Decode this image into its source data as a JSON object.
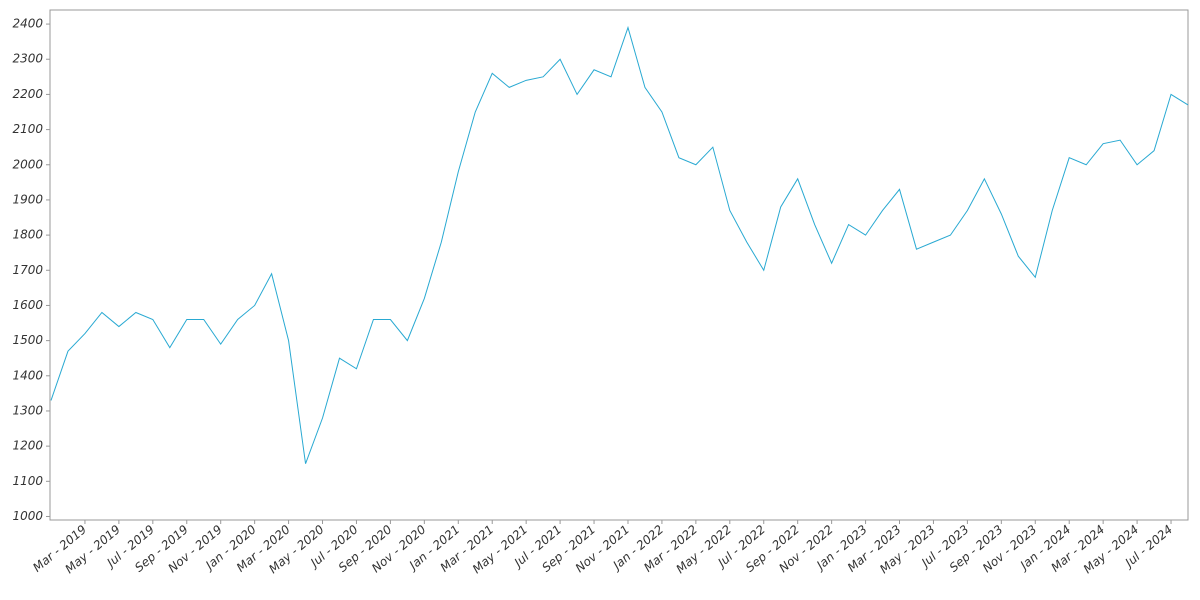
{
  "chart_data": {
    "type": "line",
    "x": [
      "2019-01",
      "2019-02",
      "2019-03",
      "2019-04",
      "2019-05",
      "2019-06",
      "2019-07",
      "2019-08",
      "2019-09",
      "2019-10",
      "2019-11",
      "2019-12",
      "2020-01",
      "2020-02",
      "2020-03",
      "2020-04",
      "2020-05",
      "2020-06",
      "2020-07",
      "2020-08",
      "2020-09",
      "2020-10",
      "2020-11",
      "2020-12",
      "2021-01",
      "2021-02",
      "2021-03",
      "2021-04",
      "2021-05",
      "2021-06",
      "2021-07",
      "2021-08",
      "2021-09",
      "2021-10",
      "2021-11",
      "2021-12",
      "2022-01",
      "2022-02",
      "2022-03",
      "2022-04",
      "2022-05",
      "2022-06",
      "2022-07",
      "2022-08",
      "2022-09",
      "2022-10",
      "2022-11",
      "2022-12",
      "2023-01",
      "2023-02",
      "2023-03",
      "2023-04",
      "2023-05",
      "2023-06",
      "2023-07",
      "2023-08",
      "2023-09",
      "2023-10",
      "2023-11",
      "2023-12",
      "2024-01",
      "2024-02",
      "2024-03",
      "2024-04",
      "2024-05",
      "2024-06",
      "2024-07",
      "2024-08"
    ],
    "series": [
      {
        "color": "#29a9d2",
        "values": [
          1330,
          1470,
          1520,
          1580,
          1540,
          1580,
          1560,
          1480,
          1560,
          1560,
          1490,
          1560,
          1600,
          1690,
          1500,
          1150,
          1280,
          1450,
          1420,
          1560,
          1560,
          1500,
          1620,
          1780,
          1980,
          2150,
          2260,
          2220,
          2240,
          2250,
          2300,
          2200,
          2270,
          2250,
          2390,
          2220,
          2150,
          2020,
          2000,
          2050,
          1870,
          1780,
          1700,
          1880,
          1960,
          1830,
          1720,
          1830,
          1800,
          1870,
          1930,
          1760,
          1780,
          1800,
          1870,
          1960,
          1860,
          1740,
          1680,
          1870,
          2020,
          2000,
          2060,
          2070,
          2000,
          2040,
          2200,
          2170
        ]
      }
    ],
    "xlim": [
      "2019-01",
      "2024-08"
    ],
    "xticks": [
      {
        "value": "2019-03",
        "label": "Mar - 2019"
      },
      {
        "value": "2019-05",
        "label": "May - 2019"
      },
      {
        "value": "2019-07",
        "label": "Jul - 2019"
      },
      {
        "value": "2019-09",
        "label": "Sep - 2019"
      },
      {
        "value": "2019-11",
        "label": "Nov - 2019"
      },
      {
        "value": "2020-01",
        "label": "Jan - 2020"
      },
      {
        "value": "2020-03",
        "label": "Mar - 2020"
      },
      {
        "value": "2020-05",
        "label": "May - 2020"
      },
      {
        "value": "2020-07",
        "label": "Jul - 2020"
      },
      {
        "value": "2020-09",
        "label": "Sep - 2020"
      },
      {
        "value": "2020-11",
        "label": "Nov - 2020"
      },
      {
        "value": "2021-01",
        "label": "Jan - 2021"
      },
      {
        "value": "2021-03",
        "label": "Mar - 2021"
      },
      {
        "value": "2021-05",
        "label": "May - 2021"
      },
      {
        "value": "2021-07",
        "label": "Jul - 2021"
      },
      {
        "value": "2021-09",
        "label": "Sep - 2021"
      },
      {
        "value": "2021-11",
        "label": "Nov - 2021"
      },
      {
        "value": "2022-01",
        "label": "Jan - 2022"
      },
      {
        "value": "2022-03",
        "label": "Mar - 2022"
      },
      {
        "value": "2022-05",
        "label": "May - 2022"
      },
      {
        "value": "2022-07",
        "label": "Jul - 2022"
      },
      {
        "value": "2022-09",
        "label": "Sep - 2022"
      },
      {
        "value": "2022-11",
        "label": "Nov - 2022"
      },
      {
        "value": "2023-01",
        "label": "Jan - 2023"
      },
      {
        "value": "2023-03",
        "label": "Mar - 2023"
      },
      {
        "value": "2023-05",
        "label": "May - 2023"
      },
      {
        "value": "2023-07",
        "label": "Jul - 2023"
      },
      {
        "value": "2023-09",
        "label": "Sep - 2023"
      },
      {
        "value": "2023-11",
        "label": "Nov - 2023"
      },
      {
        "value": "2024-01",
        "label": "Jan - 2024"
      },
      {
        "value": "2024-03",
        "label": "Mar - 2024"
      },
      {
        "value": "2024-05",
        "label": "May - 2024"
      },
      {
        "value": "2024-07",
        "label": "Jul - 2024"
      }
    ],
    "ylim": [
      990,
      2440
    ],
    "yticks": [
      1000,
      1100,
      1200,
      1300,
      1400,
      1500,
      1600,
      1700,
      1800,
      1900,
      2000,
      2100,
      2200,
      2300,
      2400
    ]
  }
}
